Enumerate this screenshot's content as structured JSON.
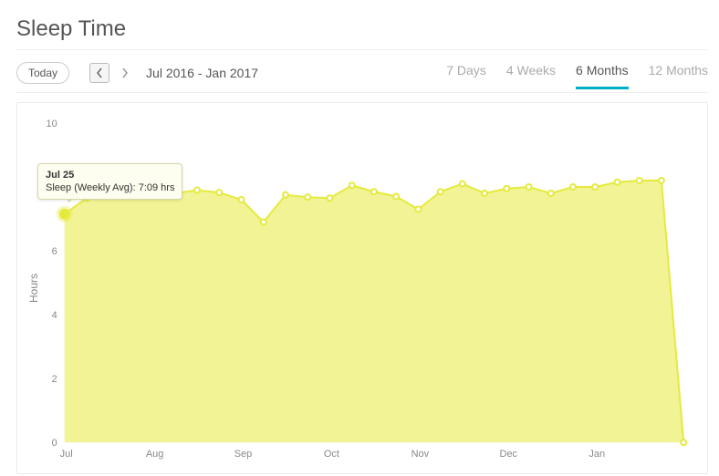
{
  "header": {
    "title": "Sleep Time"
  },
  "toolbar": {
    "today_label": "Today",
    "date_range": "Jul 2016 - Jan 2017",
    "tabs": [
      {
        "label": "7 Days",
        "active": false
      },
      {
        "label": "4 Weeks",
        "active": false
      },
      {
        "label": "6 Months",
        "active": true
      },
      {
        "label": "12 Months",
        "active": false
      }
    ]
  },
  "chart": {
    "type": "area-line",
    "title": null,
    "ylabel": "Hours",
    "ylim": [
      0,
      10
    ],
    "ytick_step": 2,
    "ytick_values": [
      0,
      2,
      4,
      6,
      8,
      10
    ],
    "x_categories": [
      "Jul",
      "Aug",
      "Sep",
      "Oct",
      "Nov",
      "Dec",
      "Jan"
    ],
    "x_span_weeks": 29,
    "series_color": "#e5ea3d",
    "series_fill_color": "#e5ea3d",
    "series_fill_opacity": 0.55,
    "line_width": 2,
    "marker_radius": 3,
    "marker_fill": "#ffffff",
    "background_color": "#ffffff",
    "border_color": "#ebebeb",
    "axis_text_color": "#888888",
    "axis_font_size": 11,
    "ylabel_font_size": 12,
    "values": [
      7.15,
      7.65,
      7.85,
      7.9,
      7.75,
      7.8,
      7.9,
      7.82,
      7.6,
      6.9,
      7.75,
      7.68,
      7.65,
      8.05,
      7.85,
      7.7,
      7.3,
      7.85,
      8.1,
      7.8,
      7.95,
      8.0,
      7.8,
      8.0,
      8.0,
      8.15,
      8.2,
      8.2,
      0.0
    ],
    "highlight_index": 0,
    "tooltip": {
      "date": "Jul 25",
      "label": "Sleep (Weekly Avg): 7:09 hrs",
      "bg_color": "#fdfdf0",
      "border_color": "#d6d6a8"
    }
  }
}
